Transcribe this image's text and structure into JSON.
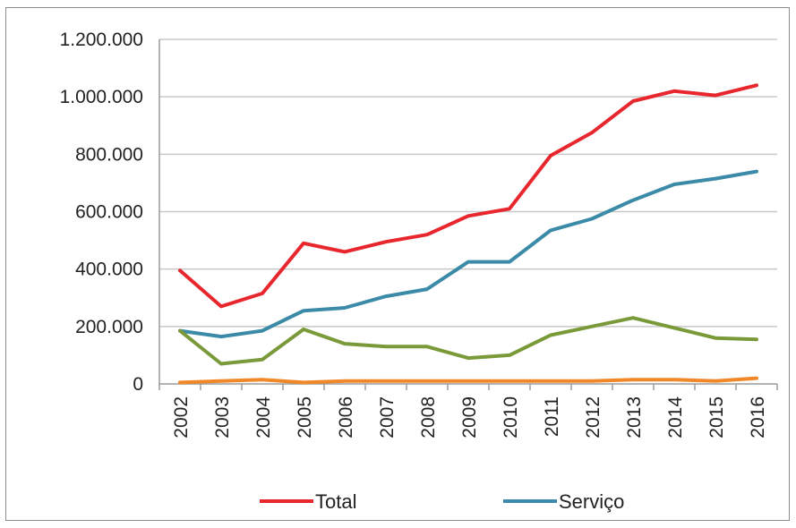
{
  "chart_data": {
    "type": "line",
    "title": "",
    "xlabel": "",
    "ylabel": "",
    "x": [
      "2002",
      "2003",
      "2004",
      "2005",
      "2006",
      "2007",
      "2008",
      "2009",
      "2010",
      "2011",
      "2012",
      "2013",
      "2014",
      "2015",
      "2016"
    ],
    "ylim": [
      0,
      1200000
    ],
    "yticks": [
      0,
      200000,
      400000,
      600000,
      800000,
      1000000,
      1200000
    ],
    "ytick_labels": [
      "0",
      "200.000",
      "400.000",
      "600.000",
      "800.000",
      "1.000.000",
      "1.200.000"
    ],
    "grid": true,
    "legend_position": "bottom",
    "series": [
      {
        "name": "Total",
        "color": "#e8262d",
        "in_legend": true,
        "values": [
          395000,
          270000,
          315000,
          490000,
          460000,
          495000,
          520000,
          585000,
          610000,
          795000,
          875000,
          985000,
          1020000,
          1005000,
          1040000
        ]
      },
      {
        "name": "Serviço",
        "color": "#3b8ba8",
        "in_legend": true,
        "values": [
          185000,
          165000,
          185000,
          255000,
          265000,
          305000,
          330000,
          425000,
          425000,
          535000,
          575000,
          640000,
          695000,
          715000,
          740000
        ]
      },
      {
        "color": "#7a9a3a",
        "in_legend": false,
        "values": [
          185000,
          70000,
          85000,
          190000,
          140000,
          130000,
          130000,
          90000,
          100000,
          170000,
          200000,
          230000,
          195000,
          160000,
          155000
        ]
      },
      {
        "color": "#f0882a",
        "in_legend": false,
        "values": [
          5000,
          10000,
          15000,
          5000,
          10000,
          10000,
          10000,
          10000,
          10000,
          10000,
          10000,
          15000,
          15000,
          10000,
          20000
        ]
      }
    ]
  }
}
